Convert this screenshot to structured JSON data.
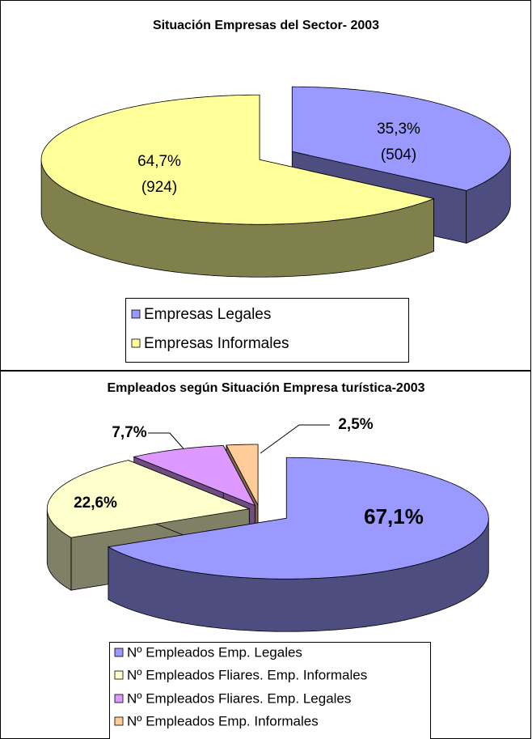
{
  "chart_data": [
    {
      "type": "pie",
      "title": "Situación Empresas del Sector- 2003",
      "categories": [
        "Empresas Legales",
        "Empresas Informales"
      ],
      "values": [
        35.3,
        64.7
      ],
      "value_labels": [
        "35,3%",
        "64,7%"
      ],
      "count_labels": [
        "(504)",
        "(924)"
      ],
      "colors": [
        "#9999ff",
        "#ffff99"
      ]
    },
    {
      "type": "pie",
      "title": "Empleados según Situación Empresa turística-2003",
      "categories": [
        "Nº Empleados Emp. Legales",
        "Nº Empleados Fliares. Emp. Informales",
        "Nº Empleados Fliares. Emp. Legales",
        "Nº Empleados Emp. Informales"
      ],
      "values": [
        67.1,
        22.6,
        7.7,
        2.5
      ],
      "value_labels": [
        "67,1%",
        "22,6%",
        "7,7%",
        "2,5%"
      ],
      "colors": [
        "#9999ff",
        "#ffffcc",
        "#dd99ff",
        "#ffcc99"
      ]
    }
  ]
}
